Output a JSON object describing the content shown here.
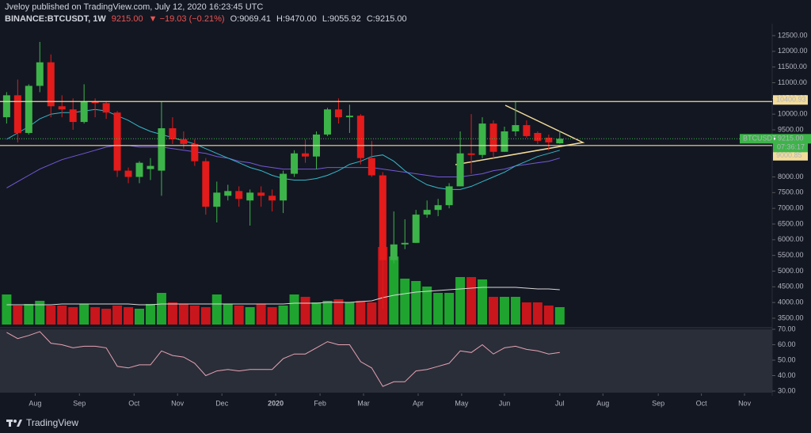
{
  "header": {
    "publisher": "Jveloy published on TradingView.com, July 12, 2020 16:23:45 UTC",
    "symbol": "BINANCE:BTCUSDT, 1W",
    "last": "9215.00",
    "change": "▼ −19.03 (−0.21%)",
    "ohlc": [
      "O:9069.41",
      "H:9470.00",
      "L:9055.92",
      "C:9215.00"
    ]
  },
  "footer": {
    "brand": "TradingView"
  },
  "chart_data": {
    "type": "candlestick",
    "xlim": [
      -0.6,
      69.2
    ],
    "xticks": [
      {
        "value": 2.58,
        "label": "Aug"
      },
      {
        "value": 6.58,
        "label": "Sep"
      },
      {
        "value": 11.52,
        "label": "Oct"
      },
      {
        "value": 15.45,
        "label": "Nov"
      },
      {
        "value": 19.46,
        "label": "Dec"
      },
      {
        "value": 24.32,
        "label": "2020"
      },
      {
        "value": 28.33,
        "label": "Feb"
      },
      {
        "value": 32.26,
        "label": "Mar"
      },
      {
        "value": 37.2,
        "label": "Apr"
      },
      {
        "value": 41.13,
        "label": "May"
      },
      {
        "value": 45,
        "label": "Jun"
      },
      {
        "value": 50,
        "label": "Jul"
      },
      {
        "value": 53.9,
        "label": "Aug"
      },
      {
        "value": 58.9,
        "label": "Sep"
      },
      {
        "value": 62.8,
        "label": "Oct"
      },
      {
        "value": 66.7,
        "label": "Nov"
      }
    ],
    "ylim": [
      3500,
      12500
    ],
    "yticks": [
      {
        "value": 3500,
        "label": "3500.00"
      },
      {
        "value": 4000,
        "label": "4000.00"
      },
      {
        "value": 4500,
        "label": "4500.00"
      },
      {
        "value": 5000,
        "label": "5000.00"
      },
      {
        "value": 5500,
        "label": "5500.00"
      },
      {
        "value": 6000,
        "label": "6000.00"
      },
      {
        "value": 6500,
        "label": "6500.00"
      },
      {
        "value": 7000,
        "label": "7000.00"
      },
      {
        "value": 7500,
        "label": "7500.00"
      },
      {
        "value": 8000,
        "label": "8000.00"
      },
      {
        "value": 9500,
        "label": "9500.00"
      },
      {
        "value": 10000,
        "label": "10000.00"
      },
      {
        "value": 10500,
        "label": "10500.00"
      },
      {
        "value": 11000,
        "label": "11000.00"
      },
      {
        "value": 11500,
        "label": "11500.00"
      },
      {
        "value": 12000,
        "label": "12000.00"
      },
      {
        "value": 12500,
        "label": "12500.00"
      }
    ],
    "colors": {
      "up": "#3db449",
      "down": "#e31b1b",
      "vol_up": "#1fa52f",
      "vol_down": "#c8161c",
      "ma20": "#35b8c8",
      "ma50": "#7359d8",
      "volume_ma": "#d8d8d8",
      "rsi": "#e7a3b3",
      "level": "#f3dc9a"
    },
    "open": [
      9900,
      10600,
      9400,
      10900,
      11650,
      10250,
      10150,
      9750,
      10400,
      10350,
      10050,
      8200,
      8000,
      8250,
      8200,
      9550,
      9200,
      9050,
      8500,
      7050,
      7400,
      7550,
      7250,
      7500,
      7400,
      7250,
      8100,
      8750,
      8650,
      9350,
      10150,
      9900,
      9950,
      8600,
      8050,
      5350,
      5850,
      5900,
      6800,
      6950,
      7100,
      7700,
      8750,
      8700,
      9700,
      8800,
      9450,
      9650,
      9400,
      9250,
      9069.41
    ],
    "high": [
      10700,
      11100,
      10950,
      12300,
      11900,
      10600,
      10500,
      10950,
      10500,
      10400,
      10100,
      8300,
      8500,
      8600,
      10400,
      9900,
      9450,
      9200,
      8600,
      7850,
      7750,
      7700,
      7600,
      7700,
      7600,
      8200,
      8850,
      9200,
      9450,
      10200,
      10500,
      10300,
      10000,
      9150,
      8150,
      6900,
      6650,
      6950,
      7250,
      7300,
      7800,
      9450,
      10000,
      9900,
      9800,
      9600,
      10400,
      9800,
      9450,
      9350,
      9470
    ],
    "low": [
      9700,
      9100,
      9350,
      10700,
      9900,
      9900,
      9500,
      9700,
      9900,
      9850,
      8000,
      7800,
      7800,
      7900,
      7400,
      9050,
      8900,
      8350,
      6800,
      6550,
      7250,
      7050,
      6450,
      7050,
      6900,
      6850,
      8000,
      8450,
      8250,
      9300,
      9700,
      9400,
      8400,
      8000,
      3800,
      5250,
      5700,
      5900,
      6700,
      6750,
      7000,
      7700,
      8100,
      8600,
      8600,
      8800,
      9300,
      9250,
      9050,
      8850,
      9055.92
    ],
    "close": [
      10600,
      9400,
      10900,
      11650,
      10250,
      10150,
      9750,
      10400,
      10350,
      10050,
      8200,
      8000,
      8450,
      8350,
      9550,
      9200,
      9050,
      8500,
      7050,
      7500,
      7550,
      7300,
      7500,
      7400,
      7250,
      8100,
      8750,
      8650,
      9350,
      10150,
      9900,
      9950,
      8600,
      8050,
      5350,
      5850,
      5900,
      6800,
      6950,
      7100,
      7700,
      8750,
      8700,
      9700,
      8800,
      9450,
      9650,
      9300,
      9150,
      9100,
      9215
    ],
    "volume": [
      38,
      24,
      26,
      30,
      24,
      24,
      22,
      26,
      22,
      20,
      24,
      22,
      20,
      26,
      40,
      28,
      26,
      24,
      22,
      38,
      26,
      24,
      22,
      26,
      22,
      24,
      38,
      35,
      28,
      30,
      32,
      28,
      30,
      28,
      98,
      86,
      58,
      55,
      48,
      40,
      40,
      60,
      60,
      57,
      35,
      35,
      35,
      28,
      28,
      24,
      22
    ],
    "vlim": [
      0,
      100
    ],
    "volume_ma": [
      25,
      25,
      25,
      25,
      25,
      26,
      26,
      26,
      26,
      26,
      26,
      26,
      25,
      25,
      26,
      26,
      26,
      26,
      26,
      26,
      26,
      26,
      26,
      26,
      26,
      26,
      27,
      27,
      27,
      28,
      28,
      28,
      29,
      30,
      34,
      37,
      39,
      41,
      42,
      43,
      44,
      45,
      46,
      47,
      47,
      47,
      47,
      46,
      45,
      45,
      44
    ],
    "ma20": [
      9200,
      9400,
      9600,
      9850,
      10000,
      10050,
      10050,
      10100,
      10150,
      10100,
      9950,
      9800,
      9600,
      9450,
      9350,
      9250,
      9150,
      9050,
      8900,
      8750,
      8600,
      8450,
      8300,
      8200,
      8050,
      7950,
      7900,
      7900,
      7950,
      8050,
      8200,
      8400,
      8500,
      8650,
      8700,
      8500,
      8200,
      7950,
      7750,
      7650,
      7600,
      7600,
      7700,
      7850,
      8000,
      8150,
      8350,
      8500,
      8650,
      8750,
      8850
    ],
    "ma50": [
      7650,
      7850,
      8050,
      8250,
      8400,
      8550,
      8650,
      8750,
      8850,
      8950,
      9000,
      9000,
      8950,
      8950,
      8950,
      8900,
      8850,
      8800,
      8750,
      8650,
      8600,
      8500,
      8450,
      8350,
      8300,
      8250,
      8250,
      8250,
      8250,
      8300,
      8300,
      8300,
      8300,
      8300,
      8250,
      8200,
      8150,
      8100,
      8050,
      8000,
      8000,
      8000,
      8050,
      8100,
      8200,
      8250,
      8350,
      8400,
      8450,
      8500,
      8600
    ],
    "rsi": [
      68,
      64,
      66,
      68.5,
      61,
      60,
      58,
      59,
      59,
      58,
      46,
      45,
      47,
      47,
      56,
      53,
      52,
      48,
      40,
      43,
      44,
      43,
      44,
      44,
      44,
      51,
      54,
      54,
      58,
      62,
      60,
      60,
      49,
      45,
      33,
      36,
      36,
      43,
      44,
      46,
      48,
      56,
      55,
      60,
      54,
      58,
      59,
      57,
      56,
      54,
      55
    ],
    "rsi_lim": [
      30,
      70
    ],
    "rsi_ticks": [
      {
        "value": 30,
        "label": "30.00"
      },
      {
        "value": 40,
        "label": "40.00"
      },
      {
        "value": 50,
        "label": "50.00"
      },
      {
        "value": 60,
        "label": "60.00"
      },
      {
        "value": 70,
        "label": "70.00"
      }
    ],
    "levels": [
      10400.93,
      9000.85
    ],
    "price_line": {
      "name": "BTCUSDT",
      "value": 9215,
      "label": "9215.00",
      "countdown": "07:36:17"
    }
  }
}
